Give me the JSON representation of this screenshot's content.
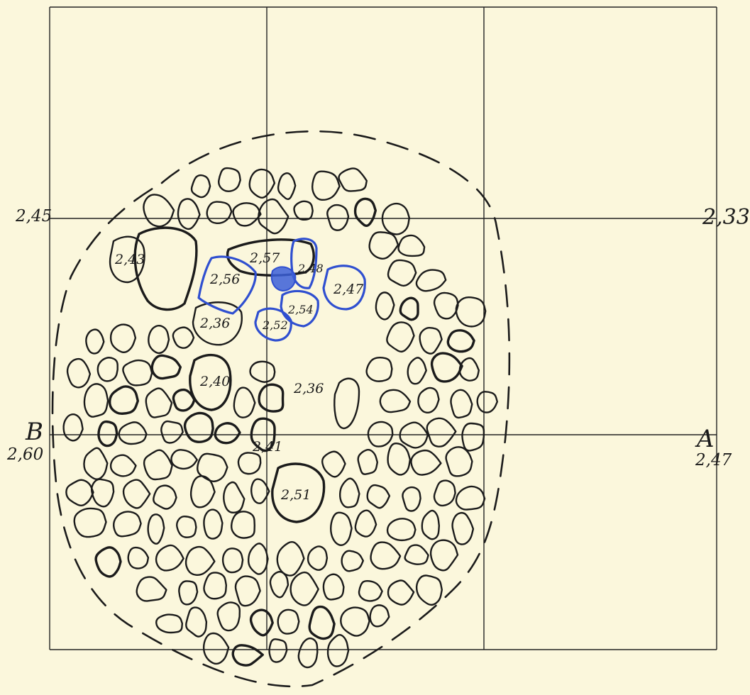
{
  "edge_labels": {
    "top_left": "2,45",
    "top_right": "2,33",
    "mid_left_letter": "B",
    "mid_left_value": "2,60",
    "mid_right_letter": "A",
    "mid_right_value": "2,47"
  },
  "stone_labels": {
    "l243": "2,43",
    "l257": "2,57",
    "l256": "2,56",
    "l248": "2,48",
    "l247": "2,47",
    "l236a": "2,36",
    "l254": "2,54",
    "l252": "2,52",
    "l240": "2,40",
    "l236b": "2,36",
    "l241": "2,41",
    "l251": "2,51"
  },
  "colors": {
    "paper": "#fbf7dc",
    "ink": "#1b1b1b",
    "blue_marking": "#2f4fd0"
  }
}
